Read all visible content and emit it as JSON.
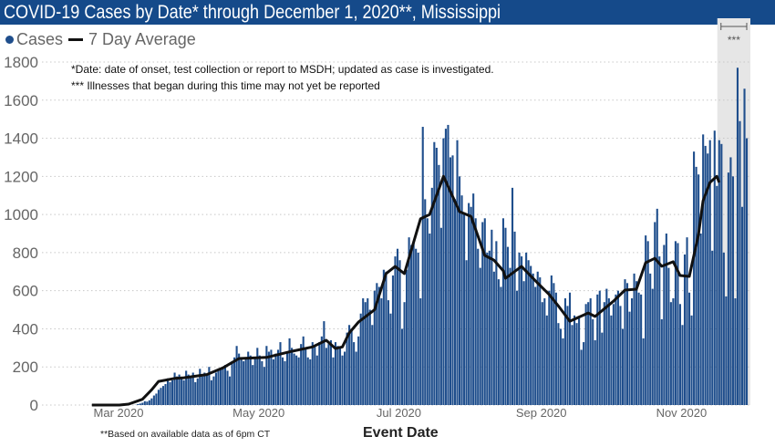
{
  "title": "COVID-19 Cases by Date* through December 1, 2020**, Mississippi",
  "legend": {
    "cases": "Cases",
    "average": "7 Day Average"
  },
  "notes": [
    "*Date: date of onset, test collection or report to MSDH; updated as case is investigated.",
    "*** Illnesses that began during this time may not yet be reported"
  ],
  "footnote": "**Based on available data as of 6pm CT",
  "shaded_label": "***",
  "colors": {
    "bars": "#1f4e8c",
    "average": "#111111",
    "header": "#154a8a",
    "shaded": "#e6e6e6"
  },
  "chart_data": {
    "type": "bar",
    "xlabel": "Event Date",
    "ylabel": "",
    "ylim": [
      0,
      1800
    ],
    "yticks": [
      "0",
      "200",
      "400",
      "600",
      "800",
      "1000",
      "1200",
      "1400",
      "1600",
      "1800"
    ],
    "xticks": [
      {
        "date": "2020-03-01",
        "label": "Mar 2020"
      },
      {
        "date": "2020-05-01",
        "label": "May 2020"
      },
      {
        "date": "2020-07-01",
        "label": "Jul 2020"
      },
      {
        "date": "2020-09-01",
        "label": "Sep 2020"
      },
      {
        "date": "2020-11-01",
        "label": "Nov 2020"
      }
    ],
    "grid": true,
    "legend_position": "top-left",
    "shaded_range": [
      "2020-11-19",
      "2020-12-01"
    ],
    "series": [
      {
        "name": "Cases",
        "type": "bar",
        "daily_by_month": {
          "2020-03": [
            0,
            0,
            0,
            0,
            0,
            0,
            0,
            0,
            0,
            1,
            5,
            8,
            12,
            20,
            18,
            25,
            35,
            50,
            60,
            80,
            90,
            100,
            110,
            140,
            120,
            130,
            170,
            150,
            160,
            140,
            130
          ],
          "2020-04": [
            180,
            160,
            150,
            170,
            120,
            140,
            190,
            150,
            170,
            160,
            200,
            130,
            150,
            170,
            180,
            190,
            200,
            210,
            180,
            150,
            230,
            250,
            310,
            270,
            240,
            230,
            250,
            280,
            260,
            210
          ],
          "2020-05": [
            250,
            300,
            260,
            230,
            200,
            310,
            280,
            290,
            240,
            270,
            290,
            330,
            250,
            230,
            280,
            350,
            300,
            270,
            260,
            250,
            320,
            360,
            300,
            250,
            240,
            330,
            310,
            260,
            330,
            360,
            440
          ],
          "2020-06": [
            300,
            320,
            340,
            250,
            330,
            310,
            300,
            260,
            280,
            380,
            420,
            400,
            330,
            280,
            360,
            480,
            560,
            540,
            560,
            500,
            420,
            600,
            640,
            620,
            560,
            710,
            700,
            550,
            480,
            680
          ],
          "2020-07": [
            780,
            820,
            760,
            400,
            540,
            710,
            880,
            840,
            860,
            820,
            800,
            560,
            1460,
            1080,
            980,
            900,
            1140,
            1380,
            1350,
            1260,
            930,
            1400,
            1450,
            1470,
            1300,
            1310,
            1080,
            1390,
            1200,
            1100,
            1010
          ],
          "2020-08": [
            760,
            1060,
            1040,
            1110,
            980,
            820,
            720,
            960,
            980,
            800,
            810,
            920,
            700,
            860,
            660,
            620,
            980,
            930,
            830,
            720,
            1140,
            910,
            600,
            800,
            780,
            650,
            800,
            760,
            730,
            690,
            620
          ],
          "2020-09": [
            700,
            670,
            540,
            560,
            470,
            600,
            680,
            640,
            590,
            430,
            400,
            350,
            560,
            520,
            590,
            420,
            470,
            430,
            460,
            290,
            330,
            530,
            540,
            560,
            450,
            340,
            580,
            600,
            380,
            540
          ],
          "2020-10": [
            610,
            560,
            470,
            530,
            580,
            600,
            520,
            400,
            660,
            640,
            490,
            560,
            690,
            650,
            590,
            580,
            350,
            890,
            860,
            690,
            610,
            960,
            1030,
            780,
            450,
            840,
            900,
            720,
            540,
            560,
            860
          ],
          "2020-11": [
            850,
            530,
            420,
            790,
            880,
            590,
            470,
            1330,
            1250,
            1210,
            900,
            1420,
            1360,
            1320,
            1390,
            810,
            1440,
            1150,
            1390,
            1370,
            800,
            570,
            1220,
            1300,
            1200,
            560,
            1770,
            1490,
            1040,
            1660
          ],
          "2020-12": [
            1400
          ]
        }
      },
      {
        "name": "7 Day Average",
        "type": "line",
        "points": [
          [
            "2020-02-20",
            0
          ],
          [
            "2020-03-03",
            0
          ],
          [
            "2020-03-07",
            5
          ],
          [
            "2020-03-13",
            30
          ],
          [
            "2020-03-17",
            80
          ],
          [
            "2020-03-20",
            124
          ],
          [
            "2020-03-27",
            140
          ],
          [
            "2020-03-31",
            143
          ],
          [
            "2020-04-10",
            160
          ],
          [
            "2020-04-17",
            195
          ],
          [
            "2020-04-24",
            244
          ],
          [
            "2020-05-06",
            250
          ],
          [
            "2020-05-17",
            282
          ],
          [
            "2020-05-26",
            305
          ],
          [
            "2020-06-01",
            340
          ],
          [
            "2020-06-05",
            297
          ],
          [
            "2020-06-08",
            305
          ],
          [
            "2020-06-11",
            378
          ],
          [
            "2020-06-15",
            435
          ],
          [
            "2020-06-22",
            500
          ],
          [
            "2020-06-27",
            690
          ],
          [
            "2020-07-01",
            727
          ],
          [
            "2020-07-05",
            690
          ],
          [
            "2020-07-12",
            977
          ],
          [
            "2020-07-16",
            1000
          ],
          [
            "2020-07-22",
            1200
          ],
          [
            "2020-07-29",
            1015
          ],
          [
            "2020-08-03",
            990
          ],
          [
            "2020-08-09",
            785
          ],
          [
            "2020-08-13",
            760
          ],
          [
            "2020-08-17",
            705
          ],
          [
            "2020-08-18",
            665
          ],
          [
            "2020-08-25",
            727
          ],
          [
            "2020-09-01",
            640
          ],
          [
            "2020-09-06",
            580
          ],
          [
            "2020-09-10",
            520
          ],
          [
            "2020-09-15",
            440
          ],
          [
            "2020-09-23",
            483
          ],
          [
            "2020-09-26",
            465
          ],
          [
            "2020-10-04",
            545
          ],
          [
            "2020-10-09",
            603
          ],
          [
            "2020-10-14",
            608
          ],
          [
            "2020-10-18",
            747
          ],
          [
            "2020-10-22",
            770
          ],
          [
            "2020-10-25",
            728
          ],
          [
            "2020-10-30",
            752
          ],
          [
            "2020-11-02",
            680
          ],
          [
            "2020-11-06",
            675
          ],
          [
            "2020-11-10",
            895
          ],
          [
            "2020-11-12",
            1072
          ],
          [
            "2020-11-15",
            1168
          ],
          [
            "2020-11-18",
            1200
          ],
          [
            "2020-11-19",
            1168
          ]
        ]
      }
    ]
  }
}
